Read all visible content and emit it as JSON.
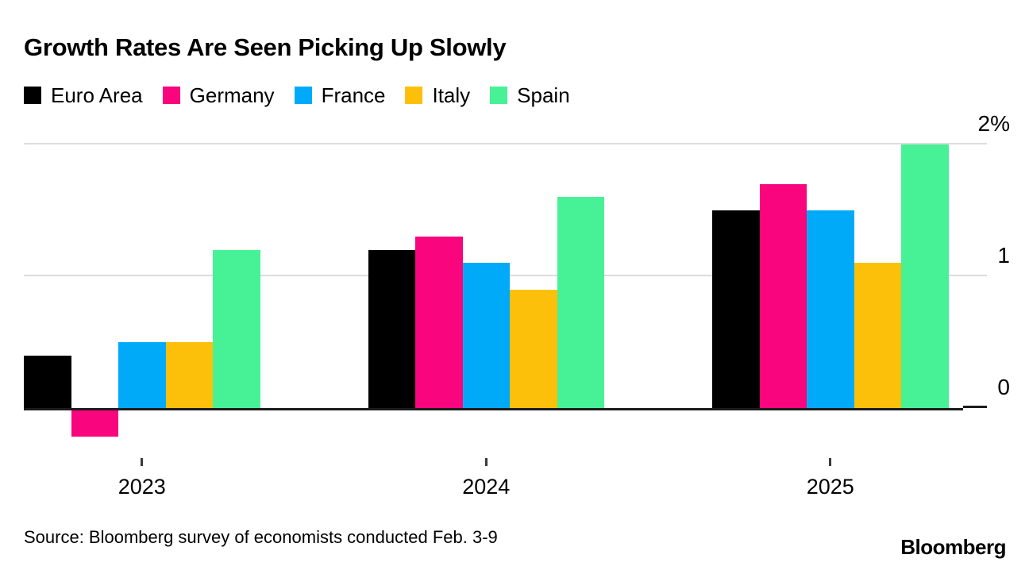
{
  "title": "Growth Rates Are Seen Picking Up Slowly",
  "source_note": "Source: Bloomberg survey of economists conducted Feb. 3-9",
  "logo_text": "Bloomberg",
  "colors": {
    "euro_area": "#000000",
    "germany": "#f9057d",
    "france": "#00aaf9",
    "italy": "#fdc00a",
    "spain": "#46f295",
    "gridline": "#dcdcdc",
    "axis": "#1c1c1c"
  },
  "y_axis": {
    "tick_labels": [
      "2%",
      "1",
      "0"
    ],
    "tick_values": [
      2,
      1,
      0
    ]
  },
  "chart_data": {
    "type": "bar",
    "title": "Growth Rates Are Seen Picking Up Slowly",
    "categories": [
      "2023",
      "2024",
      "2025"
    ],
    "series": [
      {
        "name": "Euro Area",
        "color": "#000000",
        "values": [
          0.4,
          1.2,
          1.5
        ]
      },
      {
        "name": "Germany",
        "color": "#f9057d",
        "values": [
          -0.2,
          1.3,
          1.7
        ]
      },
      {
        "name": "France",
        "color": "#00aaf9",
        "values": [
          0.5,
          1.1,
          1.5
        ]
      },
      {
        "name": "Italy",
        "color": "#fdc00a",
        "values": [
          0.5,
          0.9,
          1.1
        ]
      },
      {
        "name": "Spain",
        "color": "#46f295",
        "values": [
          1.2,
          1.6,
          2.0
        ]
      }
    ],
    "xlabel": "",
    "ylabel": "",
    "unit": "%",
    "ylim": [
      -0.3,
      2.1
    ],
    "grid": "horizontal",
    "legend_position": "top"
  }
}
